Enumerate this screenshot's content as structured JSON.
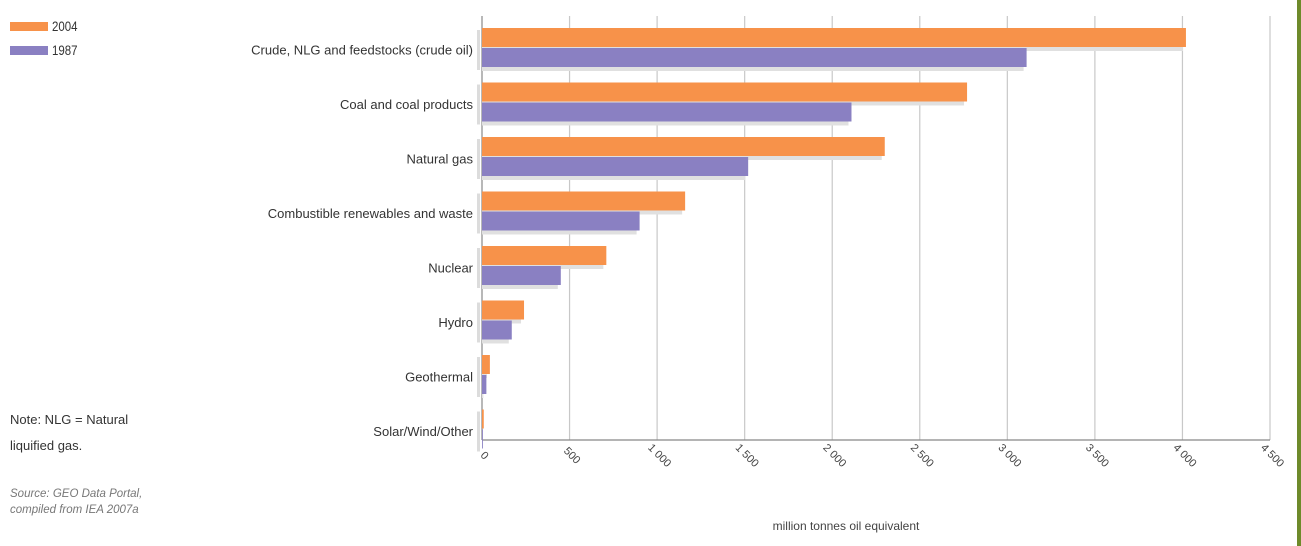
{
  "legend": {
    "items": [
      {
        "label": "2004",
        "color": "#f7924a"
      },
      {
        "label": "1987",
        "color": "#8a80c2"
      }
    ]
  },
  "note": {
    "line1": "Note: NLG = Natural",
    "line2": "liquified gas."
  },
  "source": {
    "line1": "Source: GEO Data Portal,",
    "line2": "compiled from IEA 2007a"
  },
  "chart_data": {
    "type": "bar",
    "orientation": "horizontal",
    "xlabel": "million tonnes oil equivalent",
    "xlim": [
      0,
      4500
    ],
    "xticks": [
      0,
      500,
      1000,
      1500,
      2000,
      2500,
      3000,
      3500,
      4000,
      4500
    ],
    "xtick_labels": [
      "0",
      "500",
      "1 000",
      "1 500",
      "2 000",
      "2 500",
      "3 000",
      "3 500",
      "4 000",
      "4 500"
    ],
    "grid": true,
    "legend_position": "top-left",
    "categories": [
      "Crude, NLG and feedstocks (crude oil)",
      "Coal and coal products",
      "Natural gas",
      "Combustible renewables and waste",
      "Nuclear",
      "Hydro",
      "Geothermal",
      "Solar/Wind/Other"
    ],
    "series": [
      {
        "name": "2004",
        "color": "#f7924a",
        "values": [
          4020,
          2770,
          2300,
          1160,
          710,
          240,
          45,
          10
        ]
      },
      {
        "name": "1987",
        "color": "#8a80c2",
        "values": [
          3110,
          2110,
          1520,
          900,
          450,
          170,
          25,
          5
        ]
      }
    ]
  }
}
